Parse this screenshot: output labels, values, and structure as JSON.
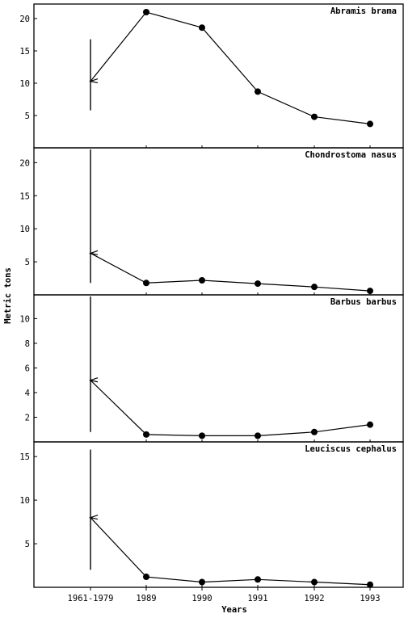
{
  "chart_data": {
    "type": "line",
    "ylabel": "Metric tons",
    "xlabel": "Years",
    "categories": [
      "1961-1979",
      "1989",
      "1990",
      "1991",
      "1992",
      "1993"
    ],
    "panels": [
      {
        "name": "Abramis brama",
        "yticks": [
          5,
          10,
          15,
          20
        ],
        "ylim": [
          0,
          22
        ],
        "baseline": {
          "category": "1961-1979",
          "mean": 10.3,
          "range": [
            5.8,
            16.8
          ]
        },
        "series": [
          {
            "x": [
              "1989",
              "1990",
              "1991",
              "1992",
              "1993"
            ],
            "values": [
              21.0,
              18.6,
              8.7,
              4.8,
              3.7
            ]
          }
        ]
      },
      {
        "name": "Chondrostoma nasus",
        "yticks": [
          5,
          10,
          15,
          20
        ],
        "ylim": [
          0,
          22
        ],
        "baseline": {
          "category": "1961-1979",
          "mean": 6.3,
          "range": [
            1.8,
            22.0
          ]
        },
        "series": [
          {
            "x": [
              "1989",
              "1990",
              "1991",
              "1992",
              "1993"
            ],
            "values": [
              1.8,
              2.2,
              1.7,
              1.2,
              0.6
            ]
          }
        ]
      },
      {
        "name": "Barbus barbus",
        "yticks": [
          2,
          4,
          6,
          8,
          10
        ],
        "ylim": [
          0,
          11.8
        ],
        "baseline": {
          "category": "1961-1979",
          "mean": 5.0,
          "range": [
            0.8,
            11.8
          ]
        },
        "series": [
          {
            "x": [
              "1989",
              "1990",
              "1991",
              "1992",
              "1993"
            ],
            "values": [
              0.6,
              0.5,
              0.5,
              0.8,
              1.4
            ]
          }
        ]
      },
      {
        "name": "Leuciscus cephalus",
        "yticks": [
          5,
          10,
          15
        ],
        "ylim": [
          0,
          16.5
        ],
        "baseline": {
          "category": "1961-1979",
          "mean": 8.0,
          "range": [
            2.0,
            15.8
          ]
        },
        "series": [
          {
            "x": [
              "1989",
              "1990",
              "1991",
              "1992",
              "1993"
            ],
            "values": [
              1.2,
              0.6,
              0.9,
              0.6,
              0.3
            ]
          }
        ]
      }
    ]
  }
}
